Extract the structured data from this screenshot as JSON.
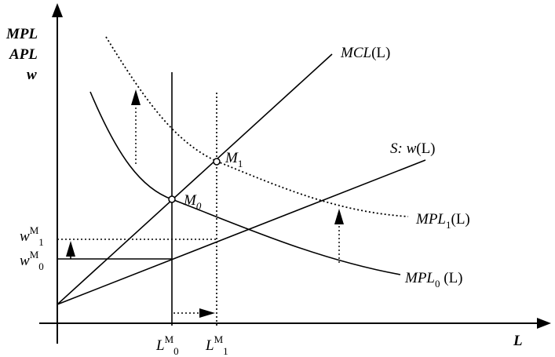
{
  "axes": {
    "y_label_lines": [
      "MPL",
      "APL",
      "w"
    ],
    "x_label": "L"
  },
  "curves": {
    "mcl": {
      "label_main": "MCL",
      "label_arg": "(L)"
    },
    "supply": {
      "label_main": "S: w",
      "label_arg": "(L)"
    },
    "mpl1": {
      "label_main": "MPL",
      "label_sub": "1",
      "label_arg": "(L)"
    },
    "mpl0": {
      "label_main": "MPL",
      "label_sub": "0",
      "label_arg": " (L)"
    }
  },
  "points": {
    "m0": {
      "main": "M",
      "sub": "0"
    },
    "m1": {
      "main": "M",
      "sub": "1"
    }
  },
  "y_ticks": {
    "w1": {
      "main": "w",
      "sup": "M",
      "sub": "1"
    },
    "w0": {
      "main": "w",
      "sup": "M",
      "sub": "0"
    }
  },
  "x_ticks": {
    "l0": {
      "main": "L",
      "sup": "M",
      "sub": "0"
    },
    "l1": {
      "main": "L",
      "sup": "M",
      "sub": "1"
    }
  }
}
